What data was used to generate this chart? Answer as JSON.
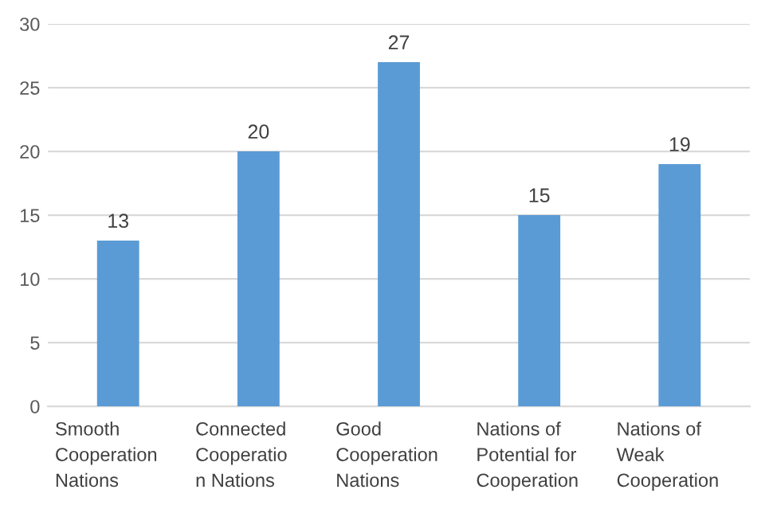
{
  "chart_data": {
    "type": "bar",
    "categories": [
      "Smooth\nCooperation\nNations",
      "Connected\nCooperatio\nn Nations",
      "Good\nCooperation\nNations",
      "Nations of\nPotential for\nCooperation",
      "Nations of\nWeak\nCooperation"
    ],
    "values": [
      13,
      20,
      27,
      15,
      19
    ],
    "color": "#5b9bd5",
    "ylim": [
      0,
      30
    ],
    "yticks": [
      0,
      5,
      10,
      15,
      20,
      25,
      30
    ],
    "grid": "y",
    "data_labels": true
  }
}
